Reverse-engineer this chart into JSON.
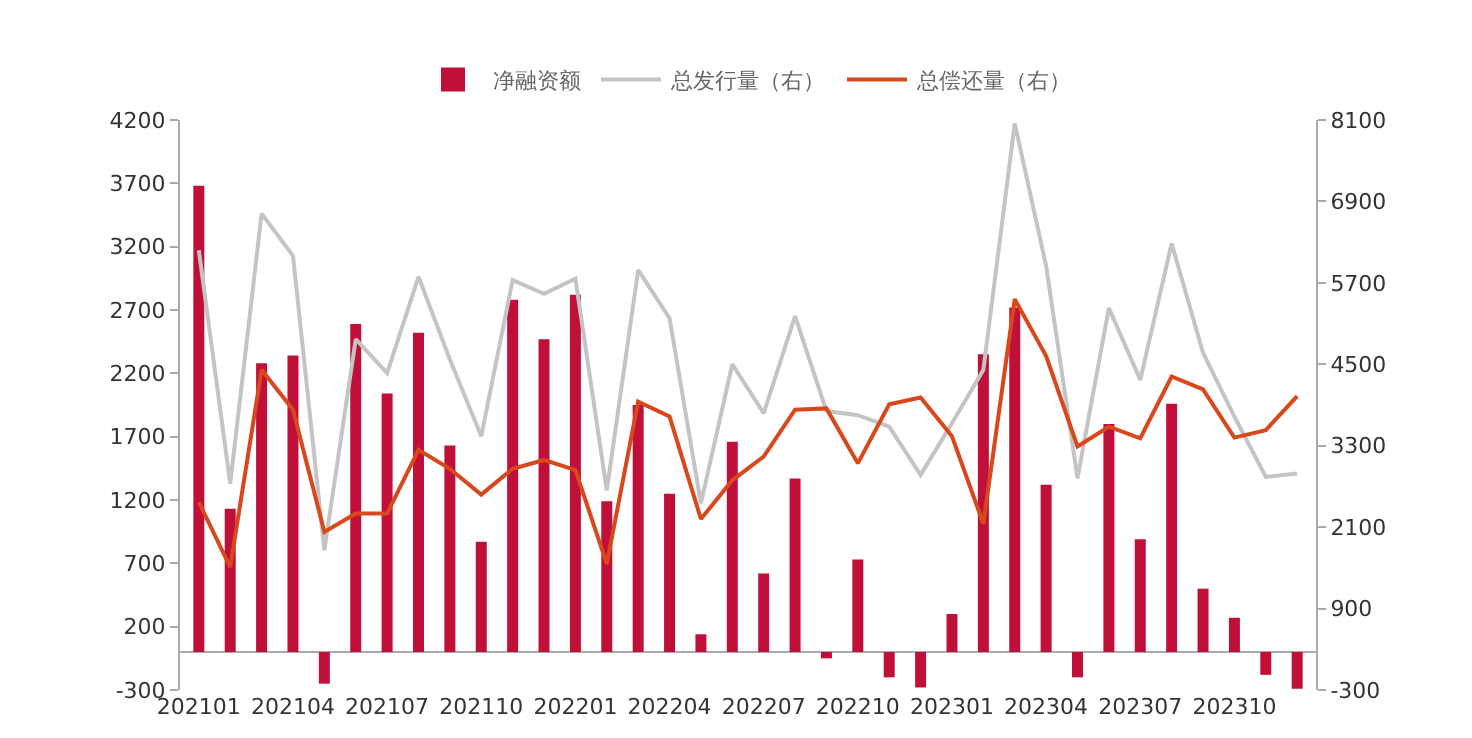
{
  "chart_data": {
    "type": "bar",
    "categories": [
      "202101",
      null,
      null,
      "202104",
      null,
      null,
      "202107",
      null,
      null,
      "202110",
      null,
      null,
      "202201",
      null,
      null,
      "202204",
      null,
      null,
      "202207",
      null,
      null,
      "202210",
      null,
      null,
      "202301",
      null,
      null,
      "202304",
      null,
      null,
      "202307",
      null,
      null,
      "202310",
      null,
      null
    ],
    "series": [
      {
        "name": "净融资额",
        "color": "#c0103a",
        "values": [
          3680,
          1130,
          2280,
          2340,
          -250,
          2590,
          2040,
          2520,
          1630,
          870,
          2780,
          2470,
          2820,
          1190,
          1950,
          1250,
          140,
          1660,
          620,
          1370,
          -50,
          730,
          -200,
          -280,
          300,
          2350,
          2720,
          1320,
          -200,
          1800,
          890,
          1960,
          500,
          270,
          -180,
          -290
        ]
      },
      {
        "name": "总发行量（右）",
        "type": "line",
        "axis": "y2",
        "color": "#c4c4c4",
        "values": [
          6180,
          2740,
          6720,
          6100,
          1760,
          4870,
          4370,
          5790,
          4570,
          3440,
          5740,
          5540,
          5760,
          2640,
          5890,
          5180,
          2450,
          4500,
          3780,
          5210,
          3810,
          3750,
          3580,
          2870,
          3630,
          4420,
          8050,
          5950,
          2820,
          5330,
          4270,
          6280,
          4670,
          3730,
          2840,
          2890
        ]
      },
      {
        "name": "总偿还量（右）",
        "type": "line",
        "axis": "y2",
        "color": "#d8481c",
        "values": [
          2470,
          1510,
          4420,
          3830,
          2030,
          2300,
          2300,
          3240,
          2960,
          2580,
          2960,
          3090,
          2940,
          1560,
          3950,
          3730,
          2220,
          2790,
          3140,
          3830,
          3850,
          3040,
          3910,
          4010,
          3440,
          2150,
          5460,
          4620,
          3290,
          3580,
          3410,
          4320,
          4130,
          3420,
          3530,
          4030
        ]
      }
    ],
    "ylim": [
      -300,
      4200
    ],
    "yticks": [
      -300,
      200,
      700,
      1200,
      1700,
      2200,
      2700,
      3200,
      3700,
      4200
    ],
    "y2lim": [
      -300,
      8100
    ],
    "y2ticks": [
      -300,
      900,
      2100,
      3300,
      4500,
      5700,
      6900,
      8100
    ],
    "grid": false,
    "legend": "top",
    "marker": "none",
    "line_style": "solid"
  }
}
